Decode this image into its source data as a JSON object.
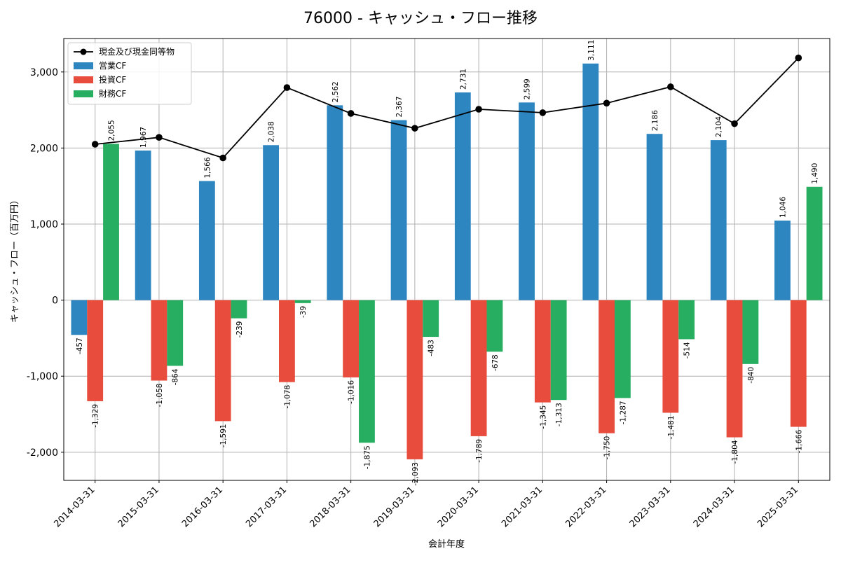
{
  "chart_data": {
    "type": "bar",
    "title": "76000 - キャッシュ・フロー推移",
    "xlabel": "会計年度",
    "ylabel": "キャッシュ・フロー（百万円）",
    "categories": [
      "2014-03-31",
      "2015-03-31",
      "2016-03-31",
      "2017-03-31",
      "2018-03-31",
      "2019-03-31",
      "2020-03-31",
      "2021-03-31",
      "2022-03-31",
      "2023-03-31",
      "2024-03-31",
      "2025-03-31"
    ],
    "ylim": [
      -2370,
      3440
    ],
    "yticks": [
      -2000,
      -1000,
      0,
      1000,
      2000,
      3000
    ],
    "ytick_labels": [
      "-2,000",
      "-1,000",
      "0",
      "1,000",
      "2,000",
      "3,000"
    ],
    "grid": true,
    "legend_position": "top-left",
    "series": [
      {
        "name": "営業CF",
        "kind": "bar",
        "color": "#2e86c1",
        "values": [
          -457,
          1967,
          1566,
          2038,
          2562,
          2367,
          2731,
          2599,
          3111,
          2186,
          2104,
          1046
        ],
        "labels": [
          "-457",
          "1,967",
          "1,566",
          "2,038",
          "2,562",
          "2,367",
          "2,731",
          "2,599",
          "3,111",
          "2,186",
          "2,104",
          "1,046"
        ]
      },
      {
        "name": "投資CF",
        "kind": "bar",
        "color": "#e74c3c",
        "values": [
          -1329,
          -1058,
          -1591,
          -1078,
          -1016,
          -2093,
          -1789,
          -1345,
          -1750,
          -1481,
          -1804,
          -1666
        ],
        "labels": [
          "-1,329",
          "-1,058",
          "-1,591",
          "-1,078",
          "-1,016",
          "-2,093",
          "-1,789",
          "-1,345",
          "-1,750",
          "-1,481",
          "-1,804",
          "-1,666"
        ]
      },
      {
        "name": "財務CF",
        "kind": "bar",
        "color": "#27ae60",
        "values": [
          2055,
          -864,
          -239,
          -39,
          -1875,
          -483,
          -678,
          -1313,
          -1287,
          -514,
          -840,
          1490
        ],
        "labels": [
          "2,055",
          "-864",
          "-239",
          "-39",
          "-1,875",
          "-483",
          "-678",
          "-1,313",
          "-1,287",
          "-514",
          "-840",
          "1,490"
        ]
      },
      {
        "name": "現金及び現金同等物",
        "kind": "line",
        "color": "#000000",
        "values": [
          2050,
          2140,
          1870,
          2795,
          2455,
          2260,
          2510,
          2465,
          2590,
          2805,
          2320,
          3185
        ]
      }
    ]
  }
}
